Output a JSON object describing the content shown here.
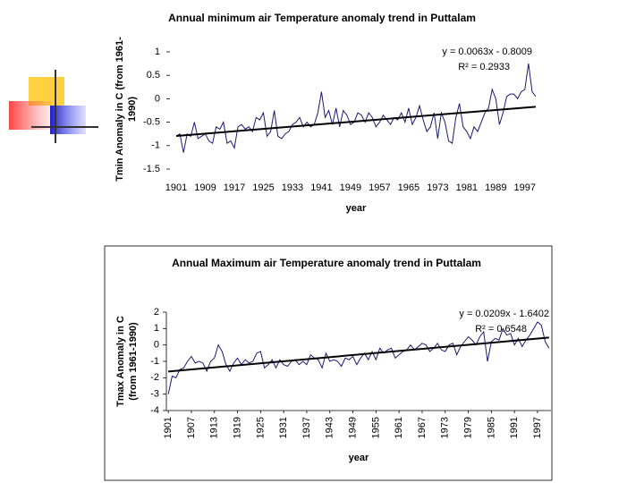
{
  "chart_data": [
    {
      "type": "line",
      "title": "Annual minimum air Temperature  anomaly trend in Puttalam",
      "x_label": "year",
      "y_label": "Tmin Anomaly in C (from 1961-1990)",
      "x": [
        1901,
        1902,
        1903,
        1904,
        1905,
        1906,
        1907,
        1908,
        1909,
        1910,
        1911,
        1912,
        1913,
        1914,
        1915,
        1916,
        1917,
        1918,
        1919,
        1920,
        1921,
        1922,
        1923,
        1924,
        1925,
        1926,
        1927,
        1928,
        1929,
        1930,
        1931,
        1932,
        1933,
        1934,
        1935,
        1936,
        1937,
        1938,
        1939,
        1940,
        1941,
        1942,
        1943,
        1944,
        1945,
        1946,
        1947,
        1948,
        1949,
        1950,
        1951,
        1952,
        1953,
        1954,
        1955,
        1956,
        1957,
        1958,
        1959,
        1960,
        1961,
        1962,
        1963,
        1964,
        1965,
        1966,
        1967,
        1968,
        1969,
        1970,
        1971,
        1972,
        1973,
        1974,
        1975,
        1976,
        1977,
        1978,
        1979,
        1980,
        1981,
        1982,
        1983,
        1984,
        1985,
        1986,
        1987,
        1988,
        1989,
        1990,
        1991,
        1992,
        1993,
        1994,
        1995,
        1996,
        1997,
        1998,
        1999,
        2000
      ],
      "values": [
        -0.8,
        -0.75,
        -1.15,
        -0.75,
        -0.8,
        -0.5,
        -0.85,
        -0.8,
        -0.75,
        -0.9,
        -0.95,
        -0.6,
        -0.65,
        -0.5,
        -0.95,
        -0.9,
        -1.05,
        -0.6,
        -0.55,
        -0.65,
        -0.6,
        -0.7,
        -0.4,
        -0.45,
        -0.3,
        -0.8,
        -0.7,
        -0.25,
        -0.8,
        -0.85,
        -0.75,
        -0.7,
        -0.55,
        -0.5,
        -0.4,
        -0.6,
        -0.5,
        -0.6,
        -0.55,
        -0.3,
        0.15,
        -0.4,
        -0.25,
        -0.55,
        -0.2,
        -0.6,
        -0.25,
        -0.35,
        -0.55,
        -0.5,
        -0.3,
        -0.35,
        -0.5,
        -0.3,
        -0.4,
        -0.6,
        -0.5,
        -0.35,
        -0.45,
        -0.55,
        -0.4,
        -0.45,
        -0.3,
        -0.5,
        -0.2,
        -0.55,
        -0.4,
        -0.15,
        -0.45,
        -0.7,
        -0.6,
        -0.3,
        -0.85,
        -0.3,
        -0.5,
        -0.9,
        -0.95,
        -0.4,
        -0.1,
        -0.6,
        -0.7,
        -0.85,
        -0.6,
        -0.7,
        -0.5,
        -0.3,
        -0.2,
        0.2,
        0.0,
        -0.55,
        -0.3,
        0.05,
        0.1,
        0.1,
        0.0,
        0.15,
        0.2,
        0.75,
        0.15,
        0.05
      ],
      "color": "#1a1a6e",
      "xlim": [
        1900.5,
        2000.5
      ],
      "xticks": [
        1901,
        1909,
        1917,
        1925,
        1933,
        1941,
        1949,
        1957,
        1965,
        1973,
        1981,
        1989,
        1997
      ],
      "ylim": [
        -1.5,
        1
      ],
      "yticks": [
        1,
        0.5,
        0,
        -0.5,
        -1,
        -1.5
      ],
      "trendline": {
        "slope": 0.0063,
        "intercept": -0.8009,
        "color": "#000000",
        "equation": "y = 0.0063x - 0.8009",
        "r2": "R² = 0.2933"
      }
    },
    {
      "type": "line",
      "title": "Annual Maximum air Temperature  anomaly trend in Puttalam",
      "x_label": "year",
      "y_label": "Tmax Anomaly in C (from 1961-1990)",
      "x": [
        1901,
        1902,
        1903,
        1904,
        1905,
        1906,
        1907,
        1908,
        1909,
        1910,
        1911,
        1912,
        1913,
        1914,
        1915,
        1916,
        1917,
        1918,
        1919,
        1920,
        1921,
        1922,
        1923,
        1924,
        1925,
        1926,
        1927,
        1928,
        1929,
        1930,
        1931,
        1932,
        1933,
        1934,
        1935,
        1936,
        1937,
        1938,
        1939,
        1940,
        1941,
        1942,
        1943,
        1944,
        1945,
        1946,
        1947,
        1948,
        1949,
        1950,
        1951,
        1952,
        1953,
        1954,
        1955,
        1956,
        1957,
        1958,
        1959,
        1960,
        1961,
        1962,
        1963,
        1964,
        1965,
        1966,
        1967,
        1968,
        1969,
        1970,
        1971,
        1972,
        1973,
        1974,
        1975,
        1976,
        1977,
        1978,
        1979,
        1980,
        1981,
        1982,
        1983,
        1984,
        1985,
        1986,
        1987,
        1988,
        1989,
        1990,
        1991,
        1992,
        1993,
        1994,
        1995,
        1996,
        1997,
        1998,
        1999,
        2000
      ],
      "values": [
        -3.0,
        -1.9,
        -2.0,
        -1.5,
        -1.4,
        -1.0,
        -0.7,
        -1.1,
        -1.0,
        -1.1,
        -1.6,
        -1.0,
        -0.8,
        0.0,
        -0.4,
        -1.2,
        -1.6,
        -1.1,
        -0.8,
        -1.2,
        -0.9,
        -1.1,
        -1.0,
        -0.5,
        -0.4,
        -1.4,
        -1.2,
        -0.9,
        -1.4,
        -0.9,
        -1.2,
        -1.3,
        -1.0,
        -0.9,
        -1.2,
        -1.0,
        -1.2,
        -0.6,
        -0.8,
        -0.9,
        -1.4,
        -0.5,
        -1.0,
        -0.9,
        -1.0,
        -1.3,
        -0.8,
        -0.9,
        -0.7,
        -1.2,
        -0.8,
        -0.5,
        -0.9,
        -0.4,
        -0.9,
        -0.2,
        -0.5,
        -0.3,
        -0.2,
        -0.8,
        -0.6,
        -0.4,
        -0.3,
        0.0,
        -0.3,
        -0.1,
        0.1,
        0.0,
        -0.4,
        -0.2,
        0.1,
        -0.3,
        -0.4,
        0.0,
        0.1,
        -0.6,
        -0.1,
        0.2,
        0.5,
        0.3,
        0.0,
        0.5,
        0.8,
        -1.0,
        0.2,
        0.4,
        0.3,
        1.0,
        0.6,
        0.7,
        0.0,
        0.4,
        -0.1,
        0.3,
        0.6,
        1.0,
        1.4,
        1.2,
        0.2,
        -0.2
      ],
      "color": "#1a1a6e",
      "xlim": [
        1900.5,
        2000.5
      ],
      "xticks": [
        1901,
        1907,
        1913,
        1919,
        1925,
        1931,
        1937,
        1943,
        1949,
        1955,
        1961,
        1967,
        1973,
        1979,
        1985,
        1991,
        1997
      ],
      "ylim": [
        -4,
        2
      ],
      "yticks": [
        2,
        1,
        0,
        -1,
        -2,
        -3,
        -4
      ],
      "trendline": {
        "slope": 0.0209,
        "intercept": -1.6402,
        "color": "#000000",
        "equation": "y = 0.0209x - 1.6402",
        "r2": "R² = 0.6548"
      }
    }
  ]
}
